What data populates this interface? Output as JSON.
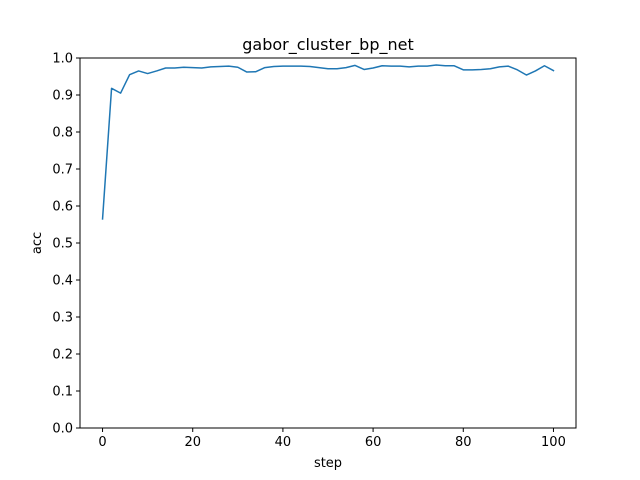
{
  "chart_data": {
    "type": "line",
    "title": "gabor_cluster_bp_net",
    "xlabel": "step",
    "ylabel": "acc",
    "xlim": [
      -5,
      105
    ],
    "ylim": [
      0.0,
      1.0
    ],
    "xticks": [
      0,
      20,
      40,
      60,
      80,
      100
    ],
    "xtick_labels": [
      "0",
      "20",
      "40",
      "60",
      "80",
      "100"
    ],
    "yticks": [
      0.0,
      0.1,
      0.2,
      0.3,
      0.4,
      0.5,
      0.6,
      0.7,
      0.8,
      0.9,
      1.0
    ],
    "ytick_labels": [
      "0.0",
      "0.1",
      "0.2",
      "0.3",
      "0.4",
      "0.5",
      "0.6",
      "0.7",
      "0.8",
      "0.9",
      "1.0"
    ],
    "grid": false,
    "series": [
      {
        "color": "#1f77b4",
        "x": [
          0,
          2,
          4,
          6,
          8,
          10,
          12,
          14,
          16,
          18,
          20,
          22,
          24,
          26,
          28,
          30,
          32,
          34,
          36,
          38,
          40,
          42,
          44,
          46,
          48,
          50,
          52,
          54,
          56,
          58,
          60,
          62,
          64,
          66,
          68,
          70,
          72,
          74,
          76,
          78,
          80,
          82,
          84,
          86,
          88,
          90,
          92,
          94,
          96,
          98,
          100
        ],
        "y": [
          0.565,
          0.918,
          0.905,
          0.955,
          0.965,
          0.958,
          0.965,
          0.973,
          0.973,
          0.975,
          0.974,
          0.973,
          0.976,
          0.977,
          0.978,
          0.975,
          0.962,
          0.963,
          0.974,
          0.977,
          0.978,
          0.978,
          0.978,
          0.977,
          0.974,
          0.971,
          0.971,
          0.974,
          0.98,
          0.969,
          0.973,
          0.979,
          0.978,
          0.978,
          0.976,
          0.978,
          0.978,
          0.981,
          0.979,
          0.979,
          0.968,
          0.968,
          0.969,
          0.971,
          0.976,
          0.978,
          0.968,
          0.954,
          0.965,
          0.979,
          0.966
        ]
      }
    ]
  }
}
